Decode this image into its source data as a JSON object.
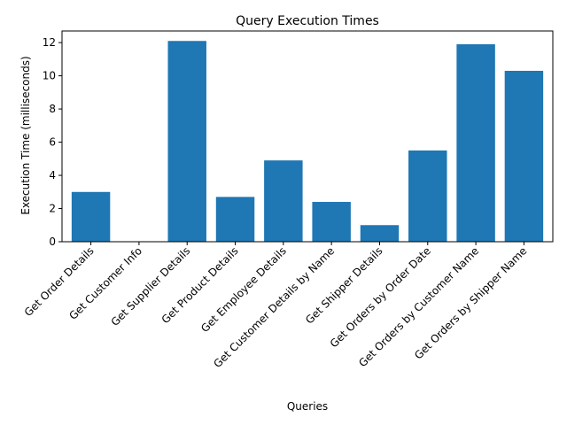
{
  "chart_data": {
    "type": "bar",
    "title": "Query Execution Times",
    "xlabel": "Queries",
    "ylabel": "Execution Time (milliseconds)",
    "categories": [
      "Get Order Details",
      "Get Customer Info",
      "Get Supplier Details",
      "Get Product Details",
      "Get Employee Details",
      "Get Customer Details by Name",
      "Get Shipper Details",
      "Get Orders by Order Date",
      "Get Orders by Customer Name",
      "Get Orders by Shipper Name"
    ],
    "values": [
      3.0,
      0.0,
      12.1,
      2.7,
      4.9,
      2.4,
      1.0,
      5.5,
      11.9,
      10.3
    ],
    "ylim": [
      0,
      12.7
    ],
    "yticks": [
      0,
      2,
      4,
      6,
      8,
      10,
      12
    ],
    "bar_color": "#1f77b4",
    "grid": false,
    "legend": "none"
  }
}
